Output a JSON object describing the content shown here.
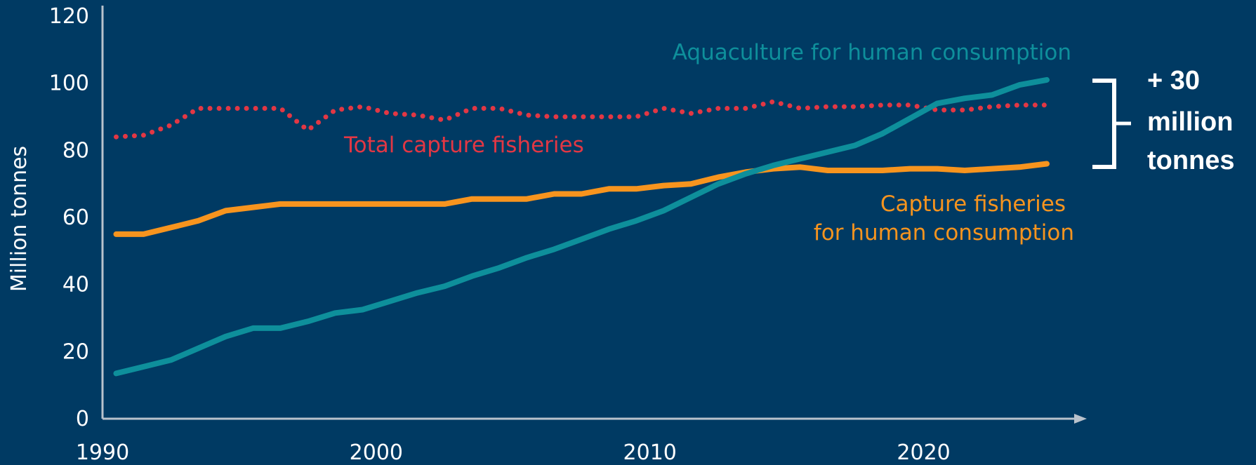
{
  "chart_data": {
    "type": "line",
    "ylabel": "Million tonnes",
    "xlabel": "",
    "xlim": [
      1990,
      2025.5
    ],
    "ylim": [
      0,
      120
    ],
    "x_ticks": [
      1990,
      2000,
      2010,
      2020
    ],
    "y_ticks": [
      0,
      20,
      40,
      60,
      80,
      100,
      120
    ],
    "grid": false,
    "series": [
      {
        "name": "Aquaculture for human consumption",
        "color": "#0e8f9b",
        "style": "solid",
        "x": [
          1990.5,
          1991.5,
          1992.5,
          1993.5,
          1994.5,
          1995.5,
          1996.5,
          1997.5,
          1998.5,
          1999.5,
          2000.5,
          2001.5,
          2002.5,
          2003.5,
          2004.5,
          2005.5,
          2006.5,
          2007.5,
          2008.5,
          2009.5,
          2010.5,
          2011.5,
          2012.5,
          2013.5,
          2014.5,
          2015.5,
          2016.5,
          2017.5,
          2018.5,
          2019.5,
          2020.5,
          2021.5,
          2022.5,
          2023.5,
          2024.5
        ],
        "values": [
          13.5,
          15.5,
          17.5,
          21,
          24.5,
          27,
          27,
          29,
          31.5,
          32.5,
          35,
          37.5,
          39.5,
          42.5,
          45,
          48,
          50.5,
          53.5,
          56.5,
          59,
          62,
          66,
          70,
          73,
          75.5,
          77.5,
          79.5,
          81.5,
          85,
          89.5,
          94,
          95.5,
          96.5,
          99.5,
          101
        ]
      },
      {
        "name": "Total capture fisheries",
        "color": "#e23744",
        "style": "dotted",
        "x": [
          1990.5,
          1991.5,
          1992.5,
          1993.5,
          1994.5,
          1995.5,
          1996.5,
          1997.5,
          1998.5,
          1999.5,
          2000.5,
          2001.5,
          2002.5,
          2003.5,
          2004.5,
          2005.5,
          2006.5,
          2007.5,
          2008.5,
          2009.5,
          2010.5,
          2011.5,
          2012.5,
          2013.5,
          2014.5,
          2015.5,
          2016.5,
          2017.5,
          2018.5,
          2019.5,
          2020.5,
          2021.5,
          2022.5,
          2023.5,
          2024.5
        ],
        "values": [
          84,
          84.5,
          87.5,
          92.5,
          92.5,
          92.5,
          92.5,
          86,
          92,
          93,
          91,
          90.5,
          89,
          92.5,
          92.5,
          90.5,
          90,
          90,
          90,
          90,
          92.5,
          91,
          92.5,
          92.5,
          94.5,
          92.5,
          93,
          93,
          93.5,
          93.5,
          92,
          92,
          93,
          93.5,
          93.5
        ]
      },
      {
        "name": "Capture fisheries for human consumption",
        "color": "#f7941e",
        "style": "solid",
        "x": [
          1990.5,
          1991.5,
          1992.5,
          1993.5,
          1994.5,
          1995.5,
          1996.5,
          1997.5,
          1998.5,
          1999.5,
          2000.5,
          2001.5,
          2002.5,
          2003.5,
          2004.5,
          2005.5,
          2006.5,
          2007.5,
          2008.5,
          2009.5,
          2010.5,
          2011.5,
          2012.5,
          2013.5,
          2014.5,
          2015.5,
          2016.5,
          2017.5,
          2018.5,
          2019.5,
          2020.5,
          2021.5,
          2022.5,
          2023.5,
          2024.5
        ],
        "values": [
          55,
          55,
          57,
          59,
          62,
          63,
          64,
          64,
          64,
          64,
          64,
          64,
          64,
          65.5,
          65.5,
          65.5,
          67,
          67,
          68.5,
          68.5,
          69.5,
          70,
          72,
          73.5,
          74.5,
          75,
          74,
          74,
          74,
          74.5,
          74.5,
          74,
          74.5,
          75,
          76
        ]
      }
    ],
    "annotation": "+ 30 million tonnes"
  },
  "labels": {
    "aquaculture": "Aquaculture for human consumption",
    "total_capture": "Total capture fisheries",
    "capture_human_line1": "Capture fisheries",
    "capture_human_line2": "for human consumption",
    "annotation_line1": "+ 30",
    "annotation_line2": "million",
    "annotation_line3": "tonnes"
  },
  "colors": {
    "background": "#003a63",
    "axis": "#b9c2cc",
    "aquaculture": "#0e8f9b",
    "total_capture": "#e23744",
    "capture_human": "#f7941e"
  }
}
